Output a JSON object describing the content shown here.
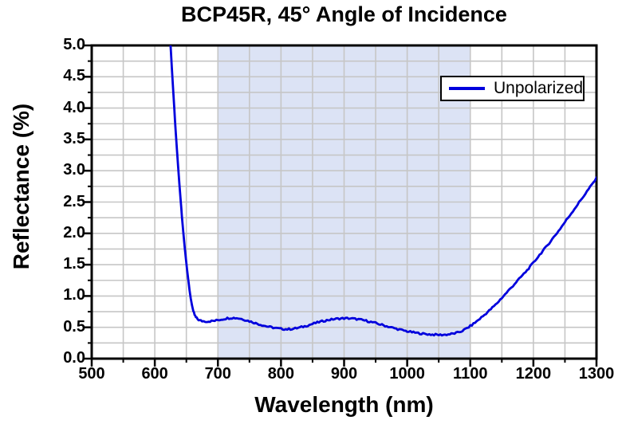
{
  "axes": {
    "x": {
      "major_step": 100,
      "minor_step": 50,
      "tick_labels": [
        "500",
        "600",
        "700",
        "800",
        "900",
        "1000",
        "1100",
        "1200",
        "1300"
      ]
    },
    "y": {
      "major_step": 0.5,
      "minor_step": 0.25,
      "tick_labels": [
        "0.0",
        "0.5",
        "1.0",
        "1.5",
        "2.0",
        "2.5",
        "3.0",
        "3.5",
        "4.0",
        "4.5",
        "5.0"
      ]
    }
  },
  "colors": {
    "curve": "#0000dd",
    "band": "#dce3f5",
    "grid": "#c6c6c6",
    "axis": "#000000",
    "legend_border": "#000000",
    "legend_bg": "#ffffff"
  },
  "chart_data": {
    "type": "line",
    "title": "BCP45R, 45° Angle of Incidence",
    "xlabel": "Wavelength (nm)",
    "ylabel": "Reflectance (%)",
    "xlim": [
      500,
      1300
    ],
    "ylim": [
      0.0,
      5.0
    ],
    "grid": "minor gridlines every 50 nm and 0.25 %",
    "legend_position": "top-right",
    "shaded_region": {
      "x_start": 700,
      "x_end": 1100,
      "color": "#dce3f5"
    },
    "series": [
      {
        "name": "Unpolarized",
        "color": "#0000dd",
        "noise_amplitude": 0.014,
        "noise_from_x": 662,
        "points": [
          [
            625,
            5.0
          ],
          [
            627,
            4.64
          ],
          [
            629,
            4.3
          ],
          [
            631,
            3.97
          ],
          [
            633,
            3.65
          ],
          [
            635,
            3.35
          ],
          [
            637,
            3.06
          ],
          [
            639,
            2.78
          ],
          [
            641,
            2.52
          ],
          [
            643,
            2.27
          ],
          [
            645,
            2.04
          ],
          [
            647,
            1.82
          ],
          [
            649,
            1.62
          ],
          [
            651,
            1.43
          ],
          [
            653,
            1.26
          ],
          [
            655,
            1.1
          ],
          [
            657,
            0.96
          ],
          [
            659,
            0.85
          ],
          [
            661,
            0.76
          ],
          [
            663,
            0.7
          ],
          [
            665,
            0.66
          ],
          [
            668,
            0.63
          ],
          [
            671,
            0.61
          ],
          [
            675,
            0.6
          ],
          [
            680,
            0.595
          ],
          [
            685,
            0.595
          ],
          [
            690,
            0.6
          ],
          [
            695,
            0.605
          ],
          [
            700,
            0.615
          ],
          [
            705,
            0.625
          ],
          [
            710,
            0.635
          ],
          [
            715,
            0.645
          ],
          [
            720,
            0.65
          ],
          [
            725,
            0.65
          ],
          [
            730,
            0.648
          ],
          [
            735,
            0.64
          ],
          [
            740,
            0.628
          ],
          [
            745,
            0.613
          ],
          [
            750,
            0.598
          ],
          [
            755,
            0.582
          ],
          [
            760,
            0.566
          ],
          [
            765,
            0.55
          ],
          [
            770,
            0.536
          ],
          [
            775,
            0.522
          ],
          [
            780,
            0.51
          ],
          [
            785,
            0.5
          ],
          [
            790,
            0.49
          ],
          [
            795,
            0.482
          ],
          [
            800,
            0.476
          ],
          [
            805,
            0.472
          ],
          [
            810,
            0.47
          ],
          [
            815,
            0.472
          ],
          [
            820,
            0.478
          ],
          [
            825,
            0.486
          ],
          [
            830,
            0.497
          ],
          [
            835,
            0.51
          ],
          [
            840,
            0.524
          ],
          [
            845,
            0.539
          ],
          [
            850,
            0.554
          ],
          [
            855,
            0.569
          ],
          [
            860,
            0.583
          ],
          [
            865,
            0.596
          ],
          [
            870,
            0.607
          ],
          [
            875,
            0.617
          ],
          [
            880,
            0.625
          ],
          [
            885,
            0.632
          ],
          [
            890,
            0.637
          ],
          [
            895,
            0.641
          ],
          [
            900,
            0.643
          ],
          [
            905,
            0.643
          ],
          [
            910,
            0.641
          ],
          [
            915,
            0.637
          ],
          [
            920,
            0.631
          ],
          [
            925,
            0.623
          ],
          [
            930,
            0.614
          ],
          [
            935,
            0.604
          ],
          [
            940,
            0.592
          ],
          [
            945,
            0.58
          ],
          [
            950,
            0.567
          ],
          [
            955,
            0.553
          ],
          [
            960,
            0.539
          ],
          [
            965,
            0.525
          ],
          [
            970,
            0.511
          ],
          [
            975,
            0.497
          ],
          [
            980,
            0.484
          ],
          [
            985,
            0.471
          ],
          [
            990,
            0.459
          ],
          [
            995,
            0.448
          ],
          [
            1000,
            0.437
          ],
          [
            1005,
            0.427
          ],
          [
            1010,
            0.418
          ],
          [
            1015,
            0.41
          ],
          [
            1020,
            0.403
          ],
          [
            1025,
            0.397
          ],
          [
            1030,
            0.392
          ],
          [
            1035,
            0.388
          ],
          [
            1040,
            0.384
          ],
          [
            1045,
            0.382
          ],
          [
            1050,
            0.38
          ],
          [
            1055,
            0.38
          ],
          [
            1060,
            0.382
          ],
          [
            1065,
            0.387
          ],
          [
            1070,
            0.394
          ],
          [
            1075,
            0.403
          ],
          [
            1080,
            0.415
          ],
          [
            1085,
            0.433
          ],
          [
            1090,
            0.458
          ],
          [
            1095,
            0.488
          ],
          [
            1100,
            0.52
          ],
          [
            1105,
            0.556
          ],
          [
            1110,
            0.595
          ],
          [
            1115,
            0.636
          ],
          [
            1120,
            0.678
          ],
          [
            1125,
            0.722
          ],
          [
            1130,
            0.767
          ],
          [
            1135,
            0.813
          ],
          [
            1140,
            0.86
          ],
          [
            1145,
            0.914
          ],
          [
            1150,
            0.97
          ],
          [
            1155,
            1.024
          ],
          [
            1160,
            1.08
          ],
          [
            1165,
            1.134
          ],
          [
            1170,
            1.19
          ],
          [
            1175,
            1.246
          ],
          [
            1180,
            1.3
          ],
          [
            1185,
            1.355
          ],
          [
            1190,
            1.41
          ],
          [
            1195,
            1.47
          ],
          [
            1200,
            1.53
          ],
          [
            1205,
            1.595
          ],
          [
            1210,
            1.66
          ],
          [
            1215,
            1.72
          ],
          [
            1220,
            1.78
          ],
          [
            1225,
            1.845
          ],
          [
            1230,
            1.91
          ],
          [
            1235,
            1.975
          ],
          [
            1240,
            2.04
          ],
          [
            1245,
            2.11
          ],
          [
            1250,
            2.18
          ],
          [
            1255,
            2.25
          ],
          [
            1260,
            2.32
          ],
          [
            1265,
            2.39
          ],
          [
            1270,
            2.46
          ],
          [
            1275,
            2.53
          ],
          [
            1280,
            2.6
          ],
          [
            1285,
            2.67
          ],
          [
            1290,
            2.74
          ],
          [
            1295,
            2.81
          ],
          [
            1300,
            2.88
          ]
        ]
      }
    ]
  }
}
